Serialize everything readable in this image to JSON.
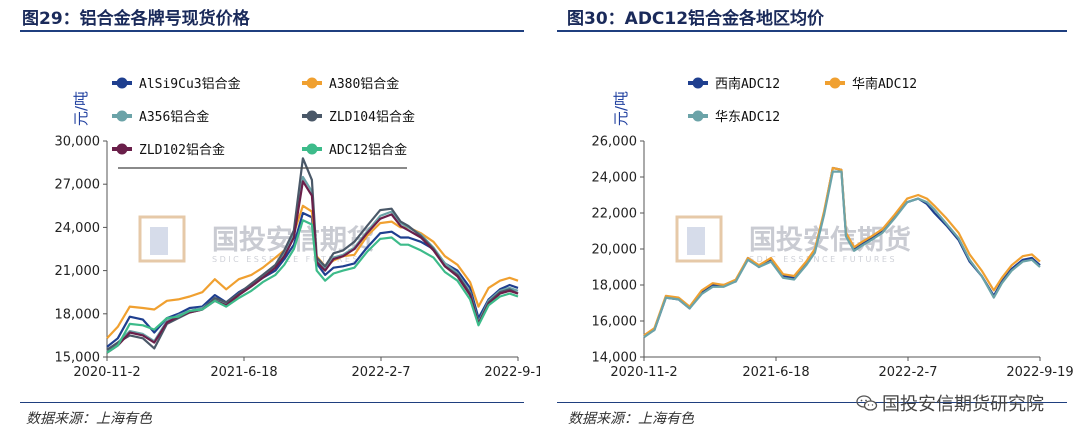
{
  "figures": [
    {
      "title": "图29：铝合金各牌号现货价格",
      "source": "数据来源：上海有色"
    },
    {
      "title": "图30：ADC12铝合金各地区均价",
      "source": "数据来源：上海有色"
    }
  ],
  "watermark": {
    "text": "国投安信期货",
    "subtext": "SDIC ESSENCE FUTURES"
  },
  "brand": {
    "text": "国投安信期货研究院",
    "icon": "wechat-icon"
  },
  "chart_data": [
    {
      "type": "line",
      "unit_label": "元/吨",
      "ylim": [
        15000,
        30000
      ],
      "yticks": [
        15000,
        18000,
        21000,
        24000,
        27000,
        30000
      ],
      "ytick_labels": [
        "15,000",
        "18,000",
        "21,000",
        "24,000",
        "27,000",
        "30,000"
      ],
      "xlim": [
        "2020-11-02",
        "2022-09-19"
      ],
      "xtick_labels": [
        "2020-11-2",
        "2021-6-18",
        "2022-2-7",
        "2022-9-19"
      ],
      "legend": "top-left",
      "x": [
        "2020-11-02",
        "2020-11-20",
        "2020-12-10",
        "2021-01-01",
        "2021-01-20",
        "2021-02-10",
        "2021-03-01",
        "2021-03-20",
        "2021-04-10",
        "2021-05-01",
        "2021-05-20",
        "2021-06-10",
        "2021-07-01",
        "2021-07-20",
        "2021-08-10",
        "2021-08-25",
        "2021-09-10",
        "2021-09-25",
        "2021-10-10",
        "2021-10-18",
        "2021-11-01",
        "2021-11-15",
        "2021-12-01",
        "2021-12-20",
        "2022-01-10",
        "2022-02-01",
        "2022-02-20",
        "2022-03-07",
        "2022-03-20",
        "2022-04-10",
        "2022-05-01",
        "2022-05-20",
        "2022-06-10",
        "2022-07-01",
        "2022-07-15",
        "2022-08-01",
        "2022-08-20",
        "2022-09-05",
        "2022-09-19"
      ],
      "series": [
        {
          "name": "AlSi9Cu3铝合金",
          "color": "#1f3f8f",
          "values": [
            15700,
            16300,
            17800,
            17600,
            16700,
            17700,
            18000,
            18400,
            18500,
            19300,
            18800,
            19500,
            20000,
            20500,
            21000,
            21800,
            22800,
            25000,
            24700,
            21500,
            20700,
            21200,
            21300,
            21500,
            22600,
            23600,
            23700,
            23300,
            23300,
            23000,
            22500,
            21500,
            21000,
            19800,
            17700,
            19000,
            19700,
            20000,
            19800
          ]
        },
        {
          "name": "A380铝合金",
          "color": "#f0a030",
          "values": [
            16300,
            17100,
            18500,
            18400,
            18300,
            18900,
            19000,
            19200,
            19500,
            20400,
            19700,
            20400,
            20700,
            21200,
            21900,
            22400,
            23600,
            25500,
            25100,
            22000,
            21300,
            21700,
            22000,
            22100,
            23400,
            24300,
            24400,
            24000,
            24000,
            23600,
            23000,
            22000,
            21400,
            20200,
            18500,
            19800,
            20300,
            20500,
            20300
          ]
        },
        {
          "name": "A356铝合金",
          "color": "#6ba3a8",
          "values": [
            15400,
            16000,
            16800,
            16600,
            16100,
            17500,
            17900,
            18200,
            18400,
            19000,
            18700,
            19400,
            20000,
            20600,
            21300,
            22200,
            23500,
            27500,
            26500,
            21700,
            21100,
            21900,
            22100,
            22600,
            23700,
            24800,
            25100,
            24300,
            24000,
            23500,
            22600,
            21500,
            20800,
            19500,
            17400,
            18900,
            19600,
            19800,
            19600
          ]
        },
        {
          "name": "ZLD104铝合金",
          "color": "#4a5868",
          "values": [
            15500,
            16000,
            16500,
            16300,
            15600,
            17300,
            17700,
            18100,
            18300,
            19100,
            18800,
            19400,
            20100,
            20700,
            21400,
            22400,
            23800,
            28800,
            27300,
            21900,
            21300,
            22200,
            22400,
            23000,
            24100,
            25200,
            25300,
            24400,
            24100,
            23400,
            22500,
            21300,
            20700,
            19400,
            17300,
            18800,
            19500,
            19700,
            19400
          ]
        },
        {
          "name": "ZLD102铝合金",
          "color": "#6a1f4a",
          "values": [
            15300,
            15800,
            16700,
            16500,
            16000,
            17400,
            17800,
            18100,
            18300,
            18900,
            18600,
            19300,
            19900,
            20500,
            21200,
            22000,
            23300,
            27200,
            26200,
            21600,
            21000,
            21800,
            22000,
            22500,
            23600,
            24600,
            24900,
            24100,
            23800,
            23300,
            22400,
            21300,
            20600,
            19300,
            17300,
            18700,
            19400,
            19600,
            19400
          ]
        },
        {
          "name": "ADC12铝合金",
          "color": "#3dbb8a",
          "values": [
            15300,
            15800,
            17300,
            17200,
            16900,
            17700,
            17800,
            18200,
            18300,
            18900,
            18500,
            19100,
            19600,
            20200,
            20700,
            21400,
            22500,
            24500,
            24200,
            21000,
            20300,
            20800,
            21000,
            21200,
            22300,
            23200,
            23300,
            22800,
            22800,
            22400,
            21900,
            20900,
            20300,
            19000,
            17200,
            18600,
            19200,
            19400,
            19200
          ]
        }
      ]
    },
    {
      "type": "line",
      "unit_label": "元/吨",
      "ylim": [
        14000,
        26000
      ],
      "yticks": [
        14000,
        16000,
        18000,
        20000,
        22000,
        24000,
        26000
      ],
      "ytick_labels": [
        "14,000",
        "16,000",
        "18,000",
        "20,000",
        "22,000",
        "24,000",
        "26,000"
      ],
      "xlim": [
        "2020-11-02",
        "2022-09-19"
      ],
      "xtick_labels": [
        "2020-11-2",
        "2021-6-18",
        "2022-2-7",
        "2022-9-19"
      ],
      "legend": "top-left",
      "x": [
        "2020-11-02",
        "2020-11-20",
        "2020-12-10",
        "2021-01-01",
        "2021-01-20",
        "2021-02-10",
        "2021-03-01",
        "2021-03-20",
        "2021-04-10",
        "2021-05-01",
        "2021-05-20",
        "2021-06-10",
        "2021-07-01",
        "2021-07-20",
        "2021-08-10",
        "2021-08-25",
        "2021-09-10",
        "2021-09-25",
        "2021-10-10",
        "2021-10-18",
        "2021-11-01",
        "2021-11-15",
        "2021-12-01",
        "2021-12-20",
        "2022-01-10",
        "2022-02-01",
        "2022-02-20",
        "2022-03-07",
        "2022-03-20",
        "2022-04-10",
        "2022-05-01",
        "2022-05-20",
        "2022-06-10",
        "2022-07-01",
        "2022-07-15",
        "2022-08-01",
        "2022-08-20",
        "2022-09-05",
        "2022-09-19"
      ],
      "series": [
        {
          "name": "西南ADC12",
          "color": "#1f3f8f",
          "values": [
            15200,
            15500,
            17300,
            17200,
            16700,
            17600,
            18000,
            18000,
            18200,
            19500,
            19000,
            19400,
            18500,
            18400,
            19200,
            19900,
            22000,
            24500,
            24400,
            20800,
            20000,
            20300,
            20600,
            21000,
            21800,
            22600,
            22800,
            22500,
            22000,
            21300,
            20500,
            19300,
            18500,
            17400,
            18200,
            18900,
            19400,
            19500,
            19100
          ]
        },
        {
          "name": "华南ADC12",
          "color": "#f0a030",
          "values": [
            15200,
            15600,
            17400,
            17300,
            16800,
            17700,
            18100,
            18000,
            18300,
            19500,
            19100,
            19500,
            18600,
            18500,
            19300,
            20000,
            22100,
            24500,
            24400,
            20900,
            20100,
            20400,
            20700,
            21100,
            21900,
            22800,
            23000,
            22800,
            22400,
            21700,
            20900,
            19700,
            18800,
            17700,
            18400,
            19100,
            19600,
            19700,
            19300
          ]
        },
        {
          "name": "华东ADC12",
          "color": "#6ba3a8",
          "values": [
            15100,
            15500,
            17300,
            17200,
            16700,
            17500,
            17900,
            17900,
            18200,
            19400,
            19000,
            19300,
            18400,
            18300,
            19100,
            19800,
            21900,
            24300,
            24300,
            20700,
            19900,
            20200,
            20500,
            20900,
            21700,
            22600,
            22800,
            22600,
            22200,
            21400,
            20600,
            19400,
            18500,
            17300,
            18100,
            18800,
            19300,
            19400,
            19000
          ]
        }
      ]
    }
  ]
}
